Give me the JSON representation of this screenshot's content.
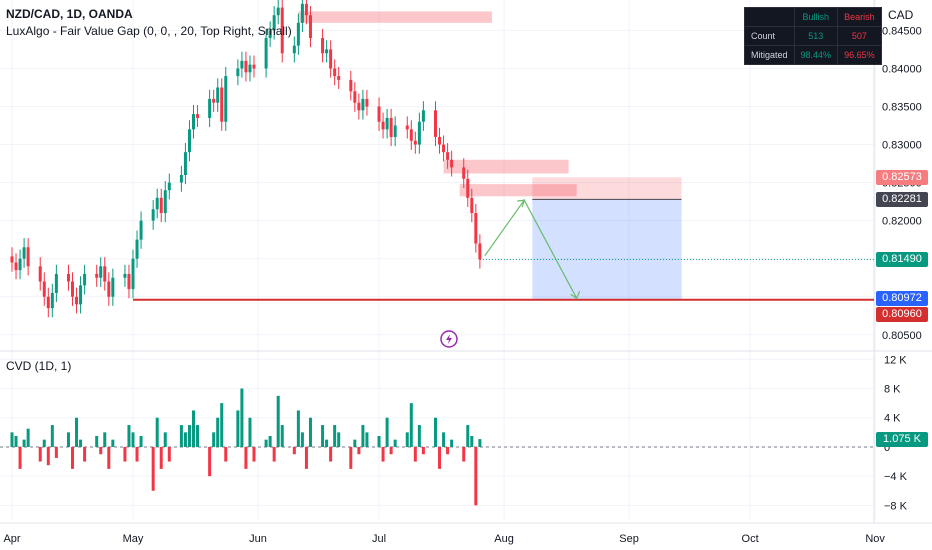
{
  "header": {
    "symbol_line": "NZD/CAD, 1D, OANDA",
    "indicator_line": "LuxAlgo - Fair Value Gap (0, 0, , 20, Top Right, Small)",
    "cvd_line": "CVD (1D, 1)",
    "currency": "CAD"
  },
  "fvg_table": {
    "col_bullish": "Bullish",
    "col_bearish": "Bearish",
    "row_count": "Count",
    "row_mitigated": "Mitigated",
    "count_bullish": "513",
    "count_bearish": "507",
    "mitigated_bullish": "98.44%",
    "mitigated_bearish": "96.65%"
  },
  "price_tags": [
    {
      "label": "0.82573",
      "value": 0.82573,
      "color": "#f77c80"
    },
    {
      "label": "0.82281",
      "value": 0.82281,
      "color": "#434651"
    },
    {
      "label": "0.81490",
      "value": 0.8149,
      "color": "#089981"
    },
    {
      "label": "0.80972",
      "value": 0.80972,
      "color": "#2962ff"
    },
    {
      "label": "0.80960",
      "value": 0.8096,
      "color": "#d32f2f"
    }
  ],
  "cvd_tag": {
    "label": "1.075 K",
    "value": 1.075,
    "color": "#089981"
  },
  "colors": {
    "up": "#089981",
    "down": "#f23645",
    "grid": "#f0f3fa"
  },
  "chart_data": [
    {
      "type": "candlestick",
      "x": [
        "2024-04-01",
        "2024-04-02",
        "2024-04-03",
        "2024-04-04",
        "2024-04-05",
        "2024-04-08",
        "2024-04-09",
        "2024-04-10",
        "2024-04-11",
        "2024-04-12",
        "2024-04-15",
        "2024-04-16",
        "2024-04-17",
        "2024-04-18",
        "2024-04-19",
        "2024-04-22",
        "2024-04-23",
        "2024-04-24",
        "2024-04-25",
        "2024-04-26",
        "2024-04-29",
        "2024-04-30",
        "2024-05-01",
        "2024-05-02",
        "2024-05-03",
        "2024-05-06",
        "2024-05-07",
        "2024-05-08",
        "2024-05-09",
        "2024-05-10",
        "2024-05-13",
        "2024-05-14",
        "2024-05-15",
        "2024-05-16",
        "2024-05-17",
        "2024-05-20",
        "2024-05-21",
        "2024-05-22",
        "2024-05-23",
        "2024-05-24",
        "2024-05-27",
        "2024-05-28",
        "2024-05-29",
        "2024-05-30",
        "2024-05-31",
        "2024-06-03",
        "2024-06-04",
        "2024-06-05",
        "2024-06-06",
        "2024-06-07",
        "2024-06-10",
        "2024-06-11",
        "2024-06-12",
        "2024-06-13",
        "2024-06-14",
        "2024-06-17",
        "2024-06-18",
        "2024-06-19",
        "2024-06-20",
        "2024-06-21",
        "2024-06-24",
        "2024-06-25",
        "2024-06-26",
        "2024-06-27",
        "2024-06-28",
        "2024-07-01",
        "2024-07-02",
        "2024-07-03",
        "2024-07-04",
        "2024-07-05",
        "2024-07-08",
        "2024-07-09",
        "2024-07-10",
        "2024-07-11",
        "2024-07-12",
        "2024-07-15",
        "2024-07-16",
        "2024-07-17",
        "2024-07-18",
        "2024-07-19",
        "2024-07-22",
        "2024-07-23",
        "2024-07-24",
        "2024-07-25",
        "2024-07-26"
      ],
      "close": [
        0.8145,
        0.8135,
        0.815,
        0.8165,
        0.814,
        0.812,
        0.81,
        0.8085,
        0.8105,
        0.813,
        0.812,
        0.81,
        0.809,
        0.8115,
        0.813,
        0.8125,
        0.814,
        0.812,
        0.81,
        0.8125,
        0.813,
        0.811,
        0.815,
        0.8175,
        0.82,
        0.8215,
        0.823,
        0.821,
        0.824,
        0.825,
        0.826,
        0.829,
        0.832,
        0.834,
        0.8335,
        0.836,
        0.8355,
        0.8375,
        0.833,
        0.839,
        0.84,
        0.841,
        0.8395,
        0.8405,
        0.84,
        0.844,
        0.845,
        0.847,
        0.848,
        0.842,
        0.843,
        0.846,
        0.8485,
        0.847,
        0.844,
        0.842,
        0.8425,
        0.84,
        0.839,
        0.8385,
        0.837,
        0.8355,
        0.8345,
        0.836,
        0.835,
        0.833,
        0.832,
        0.8335,
        0.831,
        0.8325,
        0.832,
        0.8305,
        0.83,
        0.833,
        0.8345,
        0.831,
        0.83,
        0.829,
        0.828,
        0.827,
        0.8255,
        0.823,
        0.821,
        0.817,
        0.8149
      ],
      "title": "NZD/CAD, 1D, OANDA",
      "y_ticks": [
        0.805,
        0.81,
        0.815,
        0.82,
        0.825,
        0.83,
        0.835,
        0.84,
        0.845
      ],
      "x_ticks": [
        "Apr",
        "May",
        "Jun",
        "Jul",
        "Aug",
        "Sep",
        "Oct",
        "Nov"
      ],
      "ylim": [
        0.803,
        0.849
      ],
      "annotations": {
        "fvg_zones": [
          [
            0.846,
            0.8475
          ],
          [
            0.8262,
            0.828
          ],
          [
            0.8232,
            0.8248
          ]
        ],
        "projection_zone": [
          0.8097,
          0.8257
        ],
        "support_level": 0.8096,
        "entry_level": 0.8228,
        "last_price": 0.8149
      }
    },
    {
      "type": "bar",
      "title": "CVD (1D, 1)",
      "y_ticks": [
        -8,
        -4,
        0,
        4,
        8,
        12
      ],
      "y_tick_labels": [
        "−8 K",
        "−4 K",
        "0",
        "4 K",
        "8 K",
        "12 K"
      ],
      "ylim": [
        -10,
        13
      ],
      "series": [
        {
          "values": [
            2,
            1.5,
            -3,
            1,
            2.5,
            -2,
            1,
            -2.5,
            3,
            -1.5,
            2,
            -3,
            4,
            1,
            -2,
            1.5,
            -1,
            2,
            -3,
            1,
            -2,
            3,
            2,
            -2,
            1.5,
            -6,
            4,
            -3,
            2,
            -2,
            3,
            2,
            3,
            5,
            3,
            -4,
            2,
            4,
            6,
            -2,
            5,
            8,
            -3,
            4,
            -2,
            1,
            1.5,
            -2,
            7,
            3,
            -1,
            5,
            2,
            -3,
            4,
            3,
            1,
            -2,
            3,
            2,
            -3,
            1,
            -1,
            3,
            2,
            1.5,
            -2,
            4,
            -1,
            1,
            2,
            6,
            -2,
            3,
            -1,
            4,
            -3,
            2,
            -1,
            1,
            -2,
            3,
            1.5,
            -8,
            1.075
          ]
        }
      ]
    }
  ]
}
